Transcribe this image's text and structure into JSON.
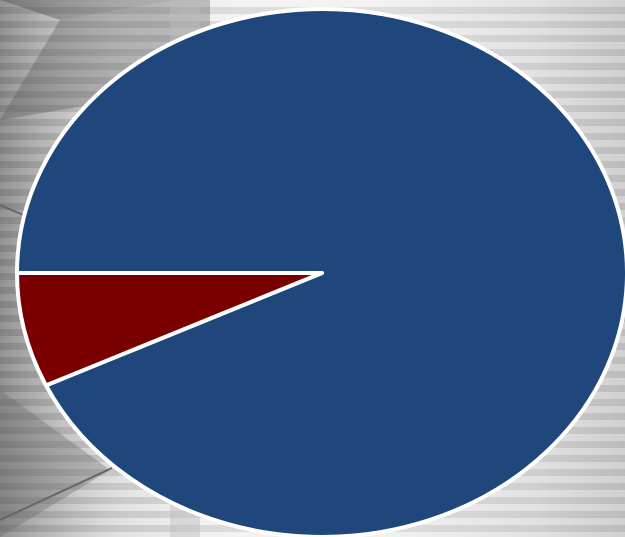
{
  "chart_data": {
    "type": "pie",
    "title": "",
    "slices": [
      {
        "value": 93,
        "color": "#1f477b"
      },
      {
        "value": 7,
        "color": "#7a0000"
      }
    ],
    "edge_color": "#ffffff",
    "legend": "none"
  }
}
